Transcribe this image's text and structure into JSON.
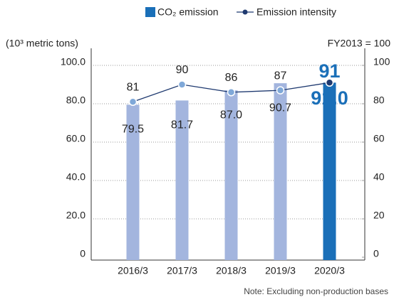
{
  "chart_data": {
    "type": "bar_line",
    "categories": [
      "2016/3",
      "2017/3",
      "2018/3",
      "2019/3",
      "2020/3"
    ],
    "series": [
      {
        "name": "CO₂ emission",
        "type": "bar",
        "color": "#1a6fb8",
        "colors": [
          "#a3b5de",
          "#a3b5de",
          "#a3b5de",
          "#a3b5de",
          "#1a6fb8"
        ],
        "values": [
          79.5,
          81.7,
          87.0,
          90.7,
          91.0
        ],
        "value_labels": [
          "79.5",
          "81.7",
          "87.0",
          "90.7",
          "91.0"
        ]
      },
      {
        "name": "Emission intensity",
        "type": "line",
        "axis": "y2",
        "color": "#1f3a70",
        "marker_color": "#7fa8d8",
        "values": [
          81,
          90,
          86,
          87,
          91
        ]
      }
    ],
    "ylabel": "(10³ metric tons)",
    "y2label": "FY2013 = 100",
    "ylim": [
      0,
      100
    ],
    "yticks": [
      0,
      {
        "value": 20,
        "label": "20.0"
      },
      {
        "value": 40,
        "label": "40.0"
      },
      {
        "value": 60,
        "label": "60.0"
      },
      {
        "value": 80,
        "label": "80.0"
      },
      {
        "value": 100,
        "label": "100.0"
      }
    ],
    "y2lim": [
      0,
      100
    ],
    "y2ticks": [
      0,
      20,
      40,
      60,
      80,
      100
    ],
    "grid": true,
    "note": "Note: Excluding non-production bases"
  }
}
